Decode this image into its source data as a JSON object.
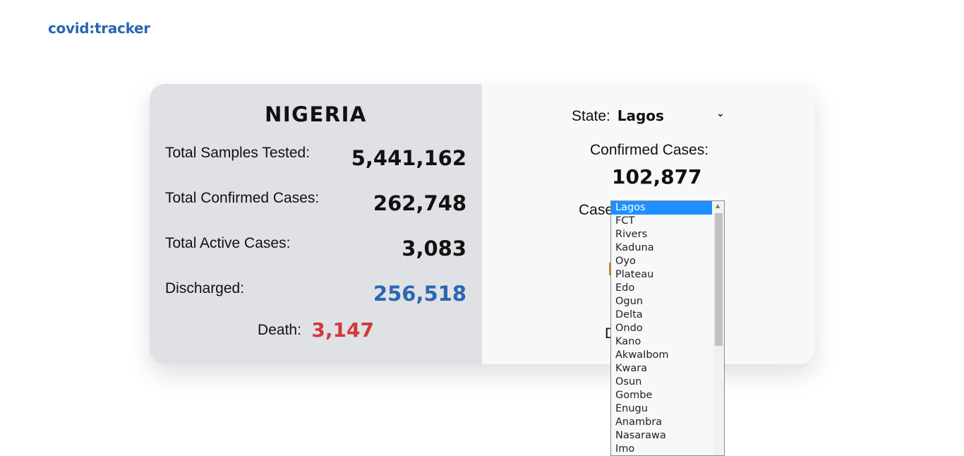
{
  "header": {
    "logo": "covid:tracker"
  },
  "national": {
    "country": "NIGERIA",
    "total_samples_label": "Total Samples Tested:",
    "total_samples_value": "5,441,162",
    "total_confirmed_label": "Total Confirmed Cases:",
    "total_confirmed_value": "262,748",
    "total_active_label": "Total Active Cases:",
    "total_active_value": "3,083",
    "discharged_label": "Discharged:",
    "discharged_value": "256,518",
    "death_label": "Death:",
    "death_value": "3,147"
  },
  "state_panel": {
    "state_label": "State:",
    "selected_state": "Lagos",
    "confirmed_label": "Confirmed Cases:",
    "confirmed_value": "102,877",
    "cases_label_partial": "Case",
    "death_label_partial": "D"
  },
  "dropdown": {
    "options": [
      "Lagos",
      "FCT",
      "Rivers",
      "Kaduna",
      "Oyo",
      "Plateau",
      "Edo",
      "Ogun",
      "Delta",
      "Ondo",
      "Kano",
      "AkwaIbom",
      "Kwara",
      "Osun",
      "Gombe",
      "Enugu",
      "Anambra",
      "Nasarawa",
      "Imo"
    ],
    "selected_index": 0
  },
  "colors": {
    "brand_blue": "#2a67b1",
    "death_red": "#d03a3a",
    "selected_option": "#1e90ff"
  }
}
